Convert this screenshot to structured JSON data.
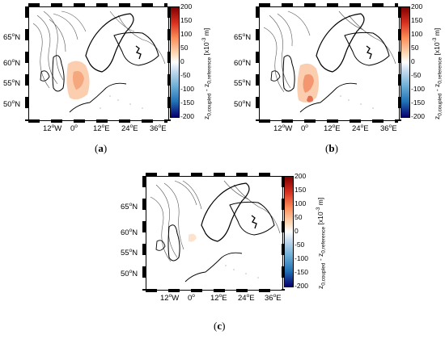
{
  "panels": [
    {
      "id": "a",
      "caption_letter": "a"
    },
    {
      "id": "b",
      "caption_letter": "b"
    },
    {
      "id": "c",
      "caption_letter": "c"
    }
  ],
  "axes": {
    "lat_labels": [
      "65",
      "60",
      "55",
      "50"
    ],
    "lat_suffix": "N",
    "lon_labels": [
      {
        "deg": "12",
        "dir": "W"
      },
      {
        "deg": "0",
        "dir": ""
      },
      {
        "deg": "12",
        "dir": "E"
      },
      {
        "deg": "24",
        "dir": "E"
      },
      {
        "deg": "36",
        "dir": "E"
      }
    ],
    "degree_symbol": "o"
  },
  "colorbar": {
    "ticks": [
      "200",
      "150",
      "100",
      "50",
      "0",
      "-50",
      "-100",
      "-150",
      "-200"
    ],
    "title_main": "z",
    "title_sub1": "0,coupled",
    "title_mid": " - z",
    "title_sub2": "0,reference",
    "unit_prefix": " [x10",
    "unit_exp": "-3",
    "unit_suffix": " m]",
    "range": [
      -200,
      200
    ],
    "colors": [
      "#7f0000",
      "#d7301f",
      "#fc8d59",
      "#fdd9b5",
      "#ffffff",
      "#c6dbef",
      "#6baed6",
      "#2171b5",
      "#08006f"
    ]
  }
}
